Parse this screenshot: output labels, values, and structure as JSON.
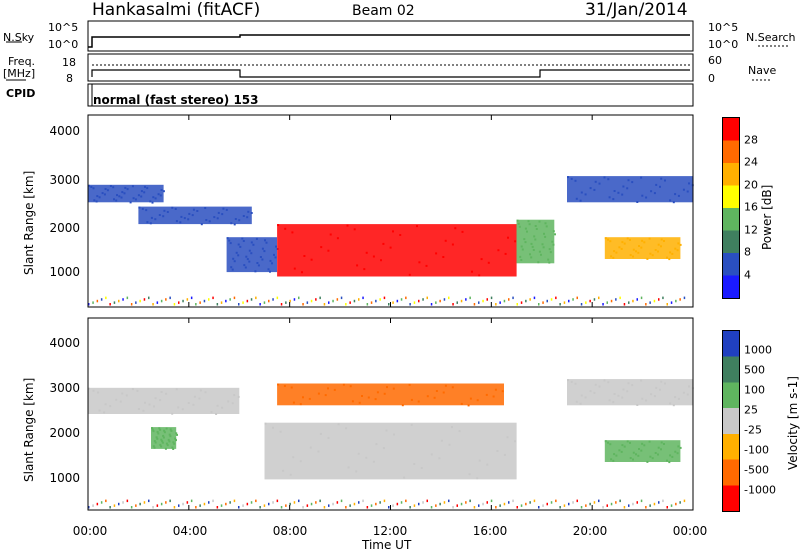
{
  "header": {
    "station": "Hankasalmi (fitACF)",
    "beam": "Beam 02",
    "date": "31/Jan/2014"
  },
  "strip_labels": {
    "nsky": "N.Sky",
    "nsky_hi": "10^5",
    "nsky_lo": "10^0",
    "nsky_hi_r": "10^5",
    "nsky_lo_r": "10^0",
    "nsearch": "N.Search",
    "freq": "Freq.",
    "freq_unit": "[MHz]",
    "freq_hi": "18",
    "freq_lo": "8",
    "nave_hi": "60",
    "nave_lo": "0",
    "nave": "Nave",
    "cpid": "CPID",
    "mode": "normal (fast stereo) 153"
  },
  "power_panel": {
    "ylabel": "Slant Range [km]",
    "yticks": [
      "4000",
      "3000",
      "2000",
      "1000"
    ],
    "colorbar_label": "Power [dB]",
    "colorbar_ticks": [
      "28",
      "24",
      "20",
      "16",
      "12",
      "8",
      "4"
    ],
    "colors": [
      "#1a1aff",
      "#2a4fc0",
      "#3f7f5f",
      "#5fb55f",
      "#ffff00",
      "#ffb000",
      "#ff6a00",
      "#ff0000"
    ]
  },
  "velocity_panel": {
    "ylabel": "Slant Range [km]",
    "yticks": [
      "4000",
      "3000",
      "2000",
      "1000"
    ],
    "colorbar_label": "Velocity [m s-1]",
    "colorbar_ticks": [
      "1000",
      "500",
      "100",
      "25",
      "-25",
      "-100",
      "-500",
      "-1000"
    ],
    "colors": [
      "#2040c0",
      "#3f7f5f",
      "#5fb55f",
      "#c8c8c8",
      "#ffb000",
      "#ff6a00",
      "#ff0000"
    ]
  },
  "xaxis": {
    "label": "Time UT",
    "ticks": [
      "00:00",
      "04:00",
      "08:00",
      "12:00",
      "16:00",
      "20:00",
      "00:00"
    ]
  },
  "chart_data": [
    {
      "type": "heatmap",
      "title": "Power",
      "xlabel": "Time UT",
      "ylabel": "Slant Range [km]",
      "xlim": [
        0,
        24
      ],
      "ylim": [
        200,
        4600
      ],
      "colorbar": {
        "label": "Power [dB]",
        "ticks": [
          4,
          8,
          12,
          16,
          20,
          24,
          28
        ]
      },
      "regions": [
        {
          "t0": 0.0,
          "t1": 3.0,
          "r0": 2600,
          "r1": 3000,
          "level": 8
        },
        {
          "t0": 2.0,
          "t1": 6.5,
          "r0": 2100,
          "r1": 2500,
          "level": 8
        },
        {
          "t0": 5.5,
          "t1": 7.5,
          "r0": 1000,
          "r1": 1800,
          "level": 8
        },
        {
          "t0": 7.5,
          "t1": 17.0,
          "r0": 900,
          "r1": 2100,
          "level": 28
        },
        {
          "t0": 17.0,
          "t1": 18.5,
          "r0": 1200,
          "r1": 2200,
          "level": 12
        },
        {
          "t0": 19.0,
          "t1": 24.0,
          "r0": 2600,
          "r1": 3200,
          "level": 8
        },
        {
          "t0": 20.5,
          "t1": 23.5,
          "r0": 1300,
          "r1": 1800,
          "level": 20
        }
      ]
    },
    {
      "type": "heatmap",
      "title": "Velocity",
      "xlabel": "Time UT",
      "ylabel": "Slant Range [km]",
      "xlim": [
        0,
        24
      ],
      "ylim": [
        200,
        4600
      ],
      "colorbar": {
        "label": "Velocity [m s-1]",
        "ticks": [
          1000,
          500,
          100,
          25,
          -25,
          -100,
          -500,
          -1000
        ]
      },
      "regions": [
        {
          "t0": 0.0,
          "t1": 6.0,
          "r0": 2400,
          "r1": 3000,
          "level": 0
        },
        {
          "t0": 2.5,
          "t1": 3.5,
          "r0": 1600,
          "r1": 2100,
          "level": 100
        },
        {
          "t0": 7.0,
          "t1": 17.0,
          "r0": 900,
          "r1": 2200,
          "level": 0
        },
        {
          "t0": 7.5,
          "t1": 16.5,
          "r0": 2600,
          "r1": 3100,
          "level": -100
        },
        {
          "t0": 19.0,
          "t1": 24.0,
          "r0": 2600,
          "r1": 3200,
          "level": 0
        },
        {
          "t0": 20.5,
          "t1": 23.5,
          "r0": 1300,
          "r1": 1800,
          "level": 100
        }
      ]
    }
  ]
}
